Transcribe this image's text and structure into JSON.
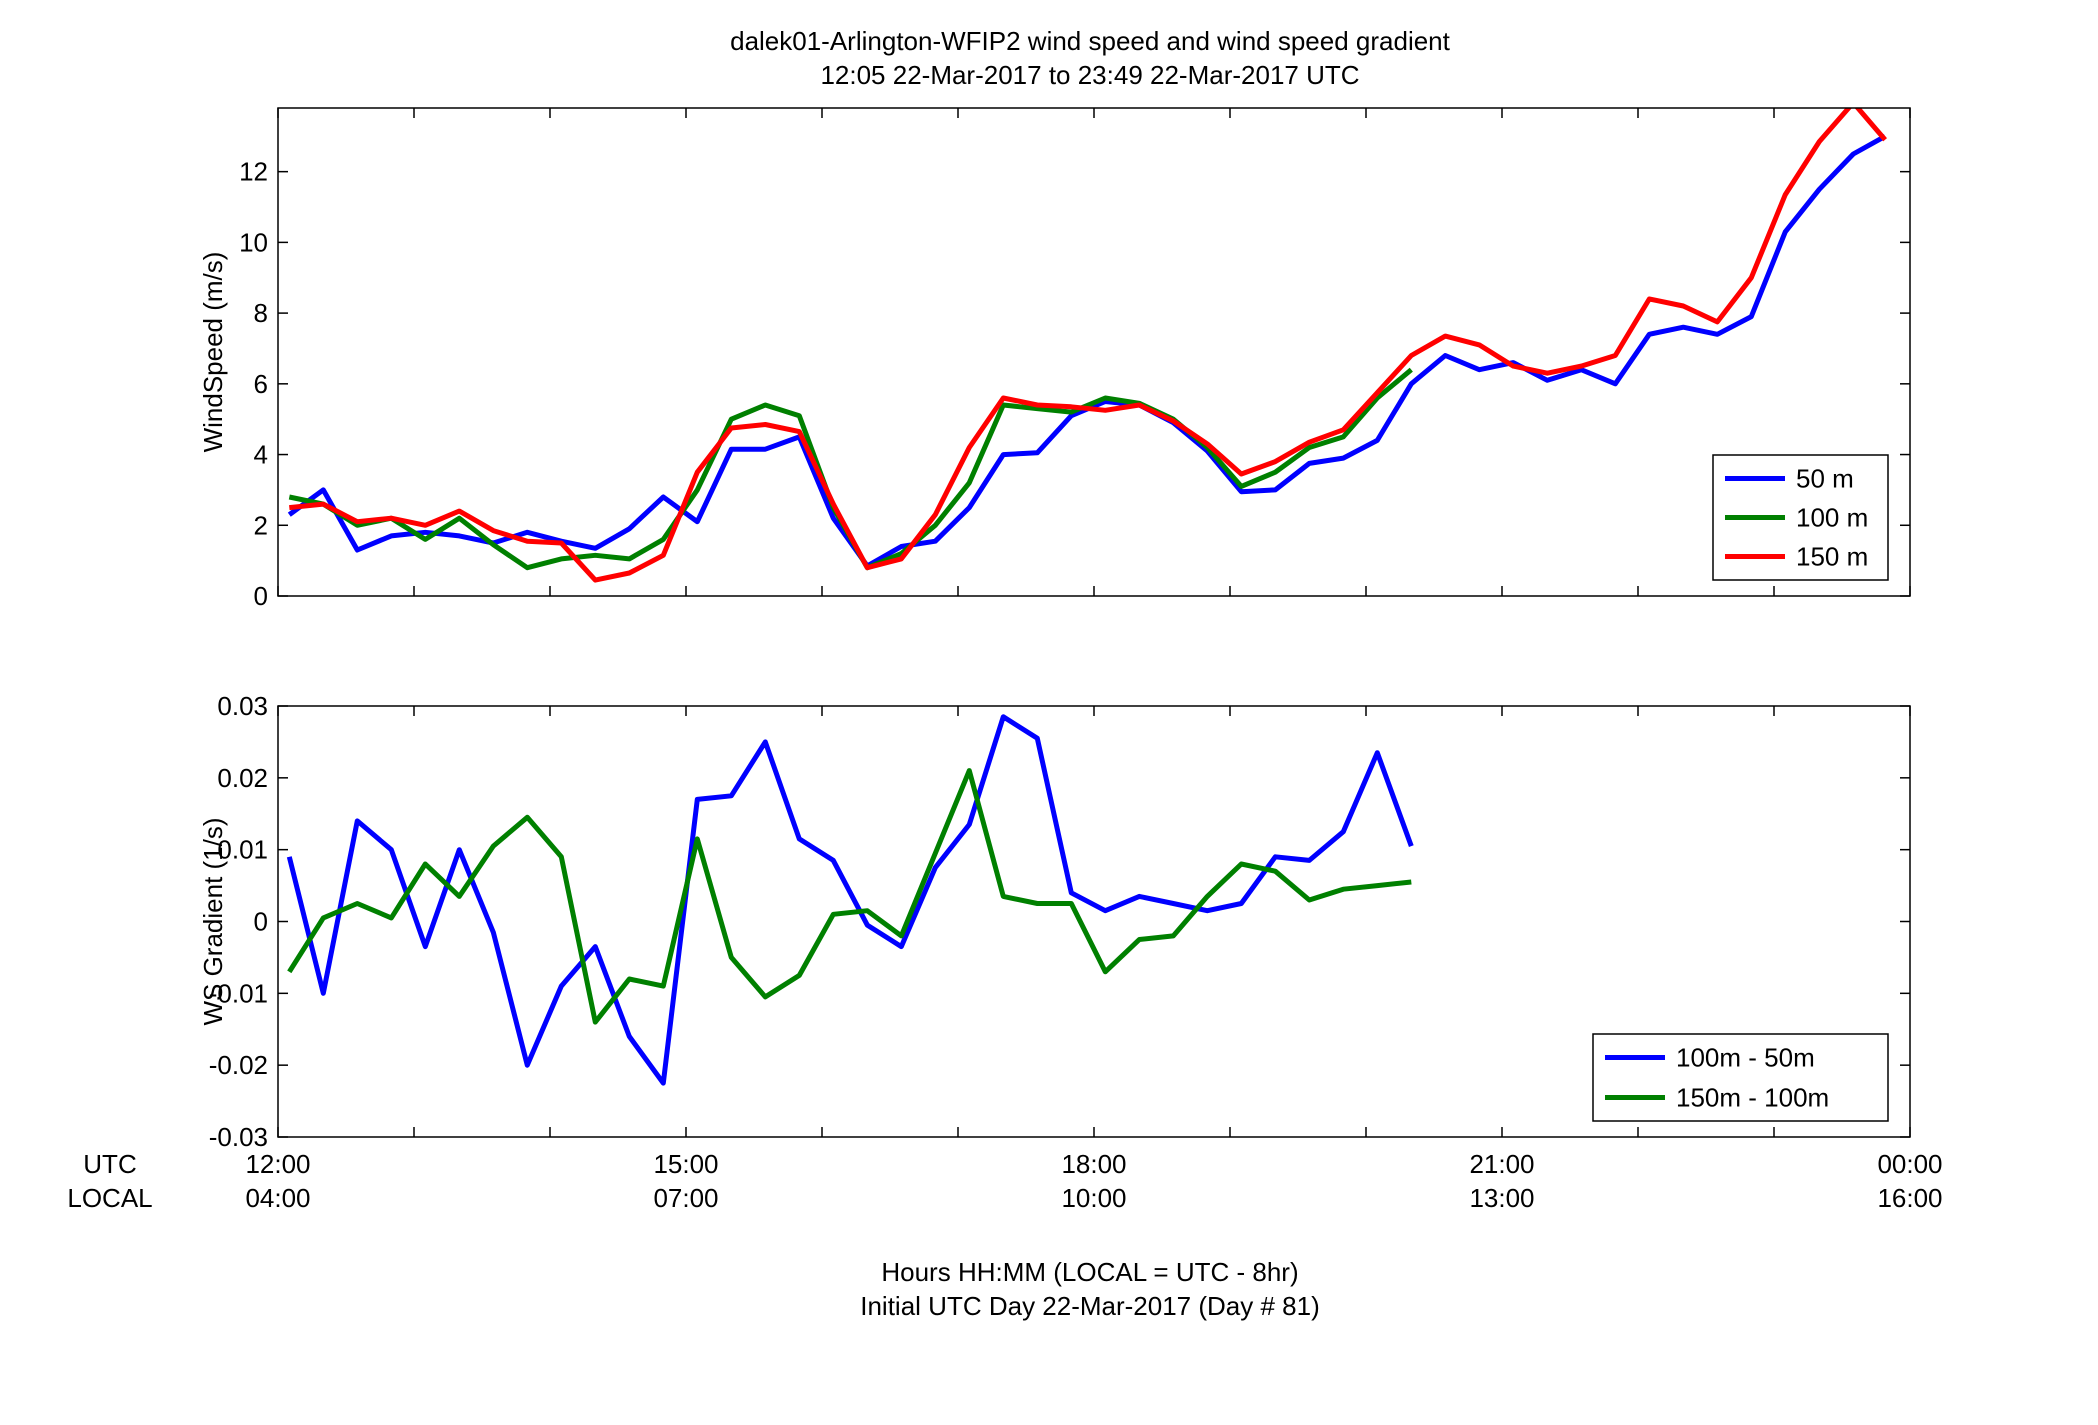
{
  "figure": {
    "title_line1": "dalek01-Arlington-WFIP2  wind speed and wind speed gradient",
    "title_line2": "12:05 22-Mar-2017 to 23:49 22-Mar-2017  UTC",
    "xlabel_line1": "Hours HH:MM  (LOCAL = UTC - 8hr)",
    "xlabel_line2": "Initial UTC Day 22-Mar-2017 (Day # 81)",
    "row_label_utc": "UTC",
    "row_label_local": "LOCAL",
    "xticks_utc": [
      "12:00",
      "15:00",
      "18:00",
      "21:00",
      "00:00"
    ],
    "xticks_local": [
      "04:00",
      "07:00",
      "10:00",
      "13:00",
      "16:00"
    ]
  },
  "chart_data": [
    {
      "type": "line",
      "title": "",
      "xlabel": "",
      "ylabel": "WindSpeed (m/s)",
      "xlim": [
        12,
        24
      ],
      "ylim": [
        0,
        13.8
      ],
      "yticks": [
        0,
        2,
        4,
        6,
        8,
        10,
        12
      ],
      "ytick_labels": [
        "0",
        "2",
        "4",
        "6",
        "8",
        "10",
        "12"
      ],
      "grid": false,
      "legend": "bottom-right",
      "x": [
        12.083,
        12.333,
        12.583,
        12.833,
        13.083,
        13.333,
        13.583,
        13.833,
        14.083,
        14.333,
        14.583,
        14.833,
        15.083,
        15.333,
        15.583,
        15.833,
        16.083,
        16.333,
        16.583,
        16.833,
        17.083,
        17.333,
        17.583,
        17.833,
        18.083,
        18.333,
        18.583,
        18.833,
        19.083,
        19.333,
        19.583,
        19.833,
        20.083,
        20.333,
        20.583,
        20.833,
        21.083,
        21.333,
        21.583,
        21.833,
        22.083,
        22.333,
        22.583,
        22.833,
        23.083,
        23.333,
        23.583,
        23.817
      ],
      "series": [
        {
          "name": "50 m",
          "color": "#0000ff",
          "values": [
            2.3,
            3.0,
            1.3,
            1.7,
            1.8,
            1.7,
            1.5,
            1.8,
            1.55,
            1.35,
            1.9,
            2.8,
            2.1,
            4.15,
            4.15,
            4.5,
            2.2,
            0.85,
            1.4,
            1.55,
            2.5,
            4.0,
            4.05,
            5.1,
            5.5,
            5.4,
            4.9,
            4.1,
            2.95,
            3.0,
            3.75,
            3.9,
            4.4,
            6.0,
            6.8,
            6.4,
            6.6,
            6.1,
            6.4,
            6.0,
            7.4,
            7.6,
            7.4,
            7.9,
            10.3,
            11.5,
            12.5,
            13.0
          ]
        },
        {
          "name": "100 m",
          "color": "#008000",
          "values": [
            2.8,
            2.6,
            2.0,
            2.2,
            1.6,
            2.2,
            1.45,
            0.8,
            1.05,
            1.15,
            1.05,
            1.6,
            3.0,
            5.0,
            5.4,
            5.1,
            2.5,
            0.8,
            1.2,
            2.0,
            3.2,
            5.4,
            5.3,
            5.2,
            5.6,
            5.45,
            5.0,
            4.2,
            3.1,
            3.5,
            4.2,
            4.5,
            5.6,
            6.4,
            null,
            null,
            null,
            null,
            null,
            null,
            null,
            null,
            null,
            null,
            null,
            null,
            null,
            null
          ]
        },
        {
          "name": "150 m",
          "color": "#ff0000",
          "values": [
            2.5,
            2.6,
            2.1,
            2.2,
            2.0,
            2.4,
            1.85,
            1.55,
            1.5,
            0.45,
            0.65,
            1.15,
            3.5,
            4.75,
            4.85,
            4.65,
            2.6,
            0.8,
            1.05,
            2.3,
            4.2,
            5.6,
            5.4,
            5.35,
            5.25,
            5.4,
            4.95,
            4.3,
            3.45,
            3.8,
            4.35,
            4.7,
            5.75,
            6.8,
            7.35,
            7.1,
            6.5,
            6.3,
            6.5,
            6.8,
            8.4,
            8.2,
            7.75,
            9.0,
            11.35,
            12.85,
            13.95,
            12.9
          ]
        }
      ]
    },
    {
      "type": "line",
      "title": "",
      "xlabel": "",
      "ylabel": "WS Gradient (1/s)",
      "xlim": [
        12,
        24
      ],
      "ylim": [
        -0.03,
        0.03
      ],
      "yticks": [
        -0.03,
        -0.02,
        -0.01,
        0,
        0.01,
        0.02,
        0.03
      ],
      "ytick_labels": [
        "-0.03",
        "-0.02",
        "-0.01",
        "0",
        "0.01",
        "0.02",
        "0.03"
      ],
      "grid": false,
      "legend": "bottom-right",
      "x": [
        12.083,
        12.333,
        12.583,
        12.833,
        13.083,
        13.333,
        13.583,
        13.833,
        14.083,
        14.333,
        14.583,
        14.833,
        15.083,
        15.333,
        15.583,
        15.833,
        16.083,
        16.333,
        16.583,
        16.833,
        17.083,
        17.333,
        17.583,
        17.833,
        18.083,
        18.333,
        18.583,
        18.833,
        19.083,
        19.333,
        19.583,
        19.833,
        20.083,
        20.333
      ],
      "series": [
        {
          "name": "100m - 50m",
          "color": "#0000ff",
          "values": [
            0.009,
            -0.01,
            0.014,
            0.01,
            -0.0035,
            0.01,
            -0.0015,
            -0.02,
            -0.009,
            -0.0035,
            -0.016,
            -0.0225,
            0.017,
            0.0175,
            0.025,
            0.0115,
            0.0085,
            -0.0005,
            -0.0035,
            0.0075,
            0.0135,
            0.0285,
            0.0255,
            0.004,
            0.0015,
            0.0035,
            0.0025,
            0.0015,
            0.0025,
            0.009,
            0.0085,
            0.0125,
            0.0235,
            0.0105
          ]
        },
        {
          "name": "150m - 100m",
          "color": "#008000",
          "values": [
            -0.007,
            0.0005,
            0.0025,
            0.0005,
            0.008,
            0.0035,
            0.0105,
            0.0145,
            0.009,
            -0.014,
            -0.008,
            -0.009,
            0.0115,
            -0.005,
            -0.0105,
            -0.0075,
            0.001,
            0.0015,
            -0.002,
            0.0095,
            0.021,
            0.0035,
            0.0025,
            0.0025,
            -0.007,
            -0.0025,
            -0.002,
            0.0035,
            0.008,
            0.007,
            0.003,
            0.0045,
            0.005,
            0.0055
          ]
        }
      ]
    }
  ]
}
